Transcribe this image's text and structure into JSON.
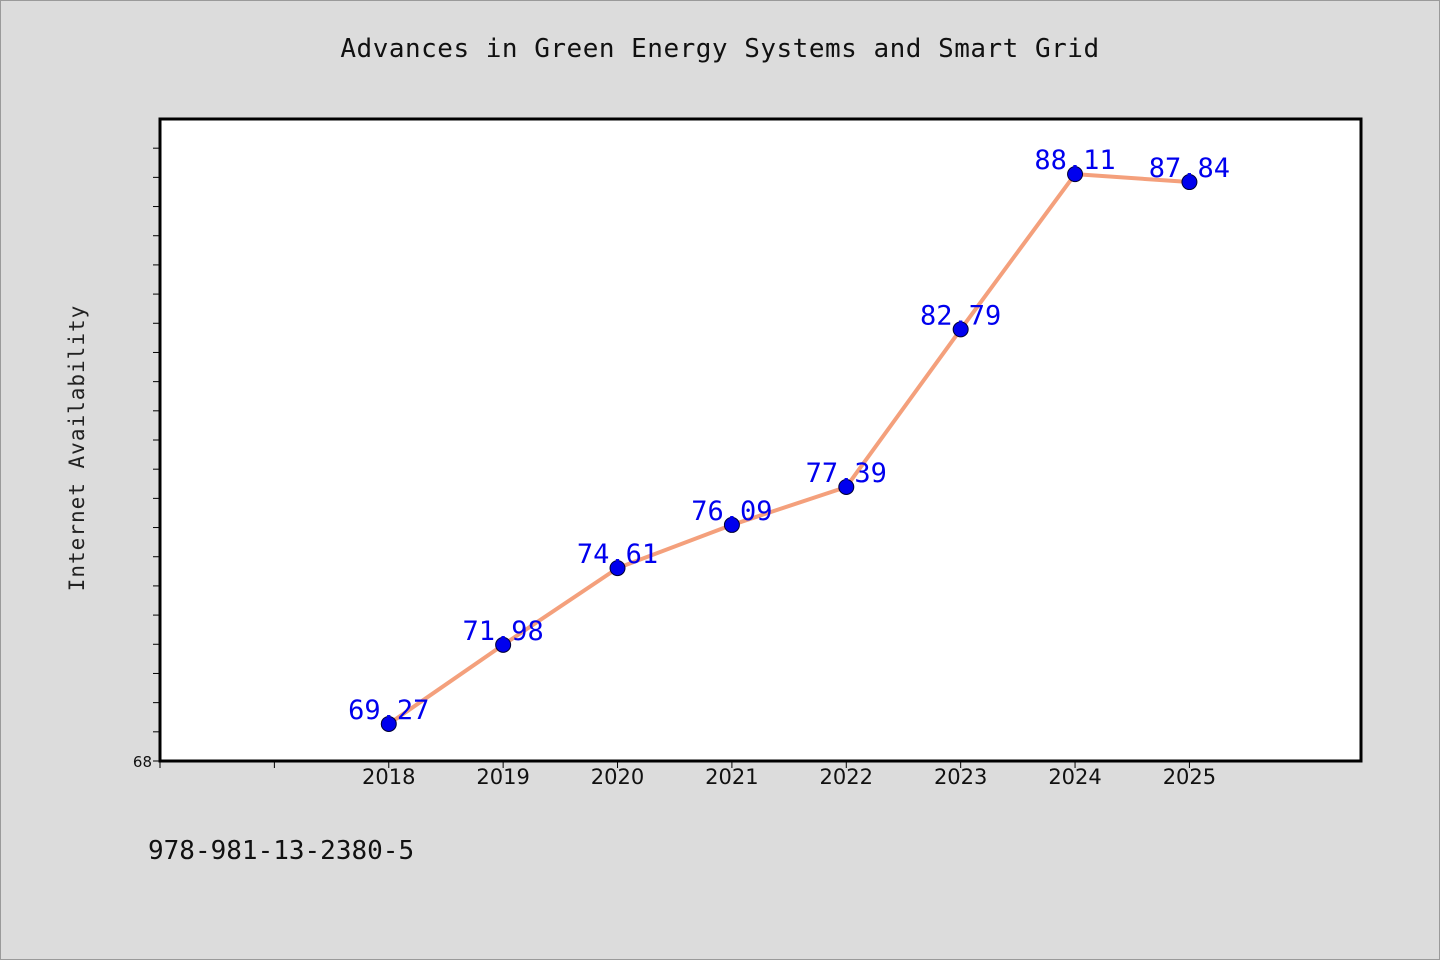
{
  "chart_data": {
    "type": "line",
    "title": "Advances in Green Energy Systems and Smart Grid",
    "ylabel": "Internet Availability",
    "xlabel": "",
    "categories": [
      "2018",
      "2019",
      "2020",
      "2021",
      "2022",
      "2023",
      "2024",
      "2025"
    ],
    "series": [
      {
        "values": [
          69.27,
          71.98,
          74.61,
          76.09,
          77.39,
          82.79,
          88.11,
          87.84
        ],
        "data_labels": [
          "69.27",
          "71.98",
          "74.61",
          "76.09",
          "77.39",
          "82.79",
          "88.11",
          "87.84"
        ],
        "line_color": "#f4a07c",
        "marker_color": "#0000ee"
      }
    ],
    "x_range_index": [
      -2.0,
      8.5
    ],
    "ylim": [
      68,
      90
    ],
    "y_tick_labels": [
      "68"
    ],
    "label_color": "#0000ee",
    "grid": false,
    "legend": "none"
  },
  "footer": {
    "text": "978-981-13-2380-5"
  },
  "colors": {
    "background": "#dcdcdc",
    "plot_area": "#ffffff",
    "axis": "#000000"
  }
}
